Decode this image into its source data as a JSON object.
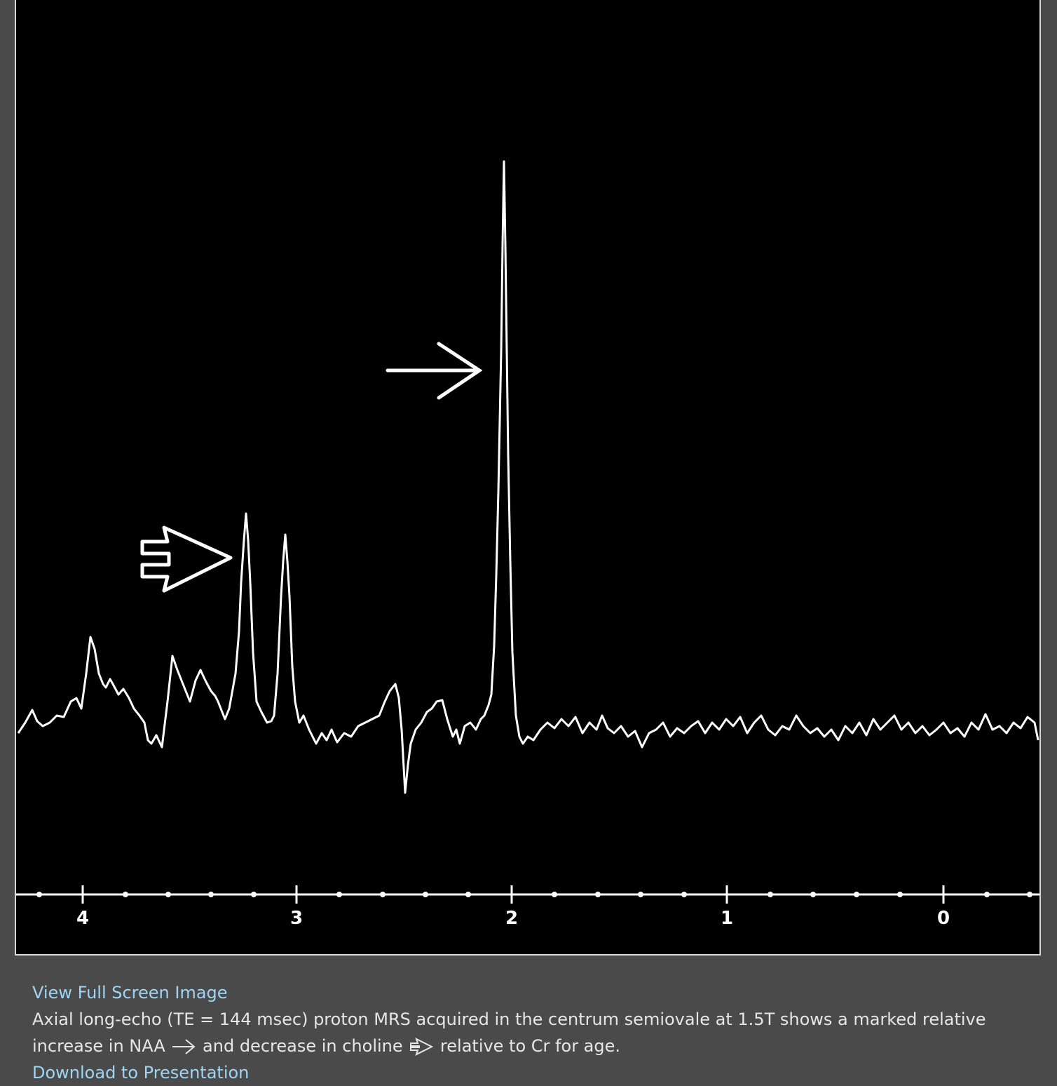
{
  "image": {
    "axis_labels": [
      "4",
      "3",
      "2",
      "1",
      "0"
    ]
  },
  "links": {
    "full_screen": "View Full Screen Image",
    "download": "Download to Presentation"
  },
  "caption": {
    "line1": "Axial long-echo (TE = 144 msec) proton MRS acquired in the centrum semiovale at 1.5T shows a marked relative",
    "line2a": "increase in NAA",
    "line2b": "and decrease in choline",
    "line2c": "relative to Cr for age."
  }
}
